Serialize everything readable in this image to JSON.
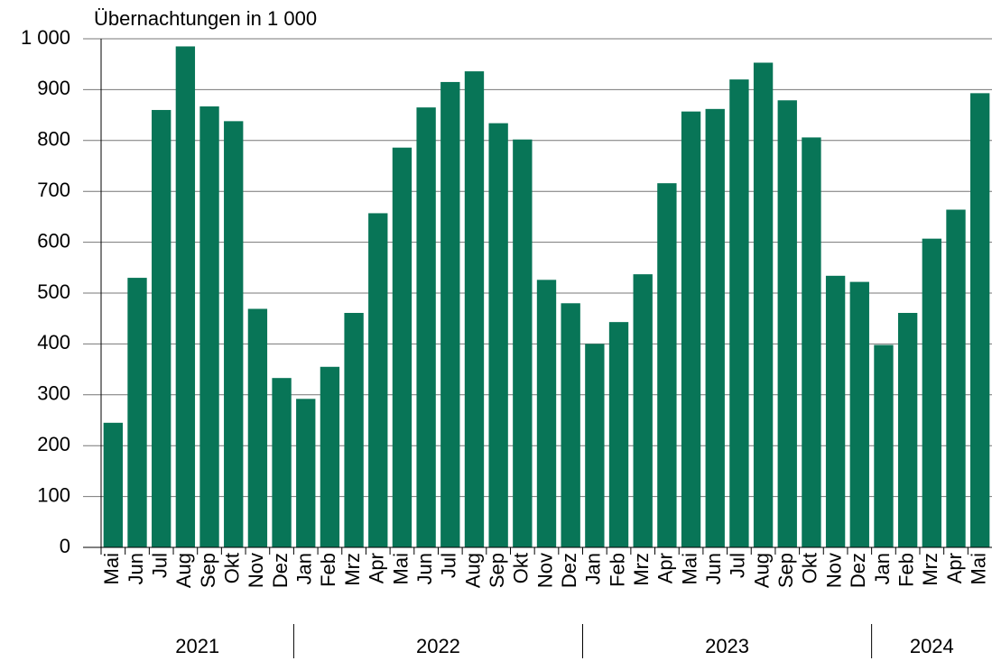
{
  "chart_data": {
    "type": "bar",
    "title": "Übernachtungen in 1 000",
    "color": "#087557",
    "groups": [
      {
        "label": "2021",
        "categories": [
          "Mai",
          "Jun",
          "Jul",
          "Aug",
          "Sep",
          "Okt",
          "Nov",
          "Dez"
        ],
        "values": [
          245,
          530,
          860,
          985,
          867,
          838,
          469,
          333
        ]
      },
      {
        "label": "2022",
        "categories": [
          "Jan",
          "Feb",
          "Mrz",
          "Apr",
          "Mai",
          "Jun",
          "Jul",
          "Aug",
          "Sep",
          "Okt",
          "Nov",
          "Dez"
        ],
        "values": [
          292,
          355,
          461,
          657,
          786,
          865,
          915,
          936,
          834,
          802,
          526,
          480
        ]
      },
      {
        "label": "2023",
        "categories": [
          "Jan",
          "Feb",
          "Mrz",
          "Apr",
          "Mai",
          "Jun",
          "Jul",
          "Aug",
          "Sep",
          "Okt",
          "Nov",
          "Dez"
        ],
        "values": [
          400,
          443,
          537,
          716,
          857,
          862,
          920,
          953,
          879,
          806,
          534,
          522
        ]
      },
      {
        "label": "2024",
        "categories": [
          "Jan",
          "Feb",
          "Mrz",
          "Apr",
          "Mai"
        ],
        "values": [
          398,
          461,
          607,
          664,
          893
        ]
      }
    ],
    "ylim": [
      0,
      1000
    ],
    "yticks": [
      0,
      100,
      200,
      300,
      400,
      500,
      600,
      700,
      800,
      900,
      {
        "value": 1000,
        "label": "1 000"
      }
    ],
    "grid": true
  }
}
